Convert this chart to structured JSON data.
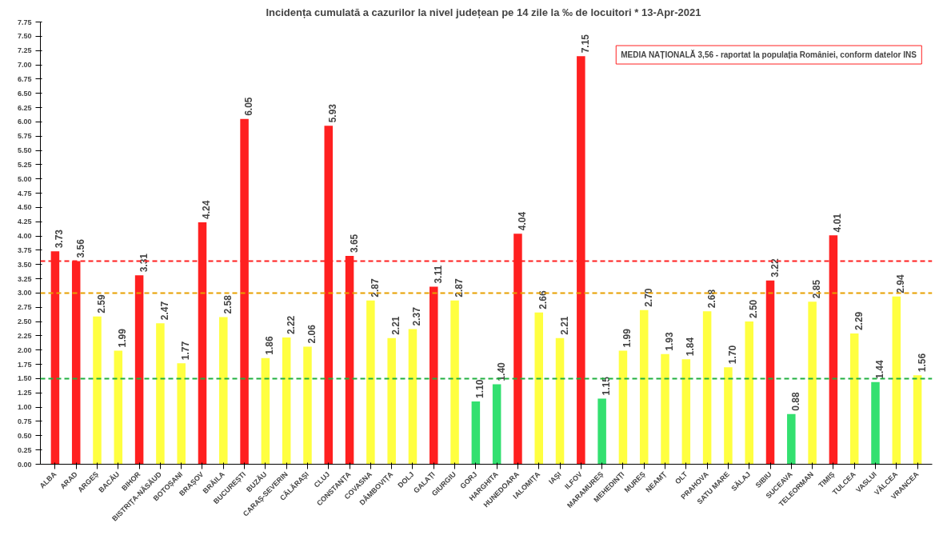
{
  "chart_data": {
    "type": "bar",
    "title": "Incidența cumulată a cazurilor la nivel județean pe 14 zile la ‰ de locuitori *   13-Apr-2021",
    "categories": [
      "ALBA",
      "ARAD",
      "ARGEȘ",
      "BACĂU",
      "BIHOR",
      "BISTRIȚA-NĂSĂUD",
      "BOTOȘANI",
      "BRAȘOV",
      "BRĂILA",
      "BUCUREȘTI",
      "BUZĂU",
      "CARAȘ-SEVERIN",
      "CĂLĂRAȘI",
      "CLUJ",
      "CONSTANȚA",
      "COVASNA",
      "DÂMBOVIȚA",
      "DOLJ",
      "GALAȚI",
      "GIURGIU",
      "GORJ",
      "HARGHITA",
      "HUNEDOARA",
      "IALOMIȚA",
      "IAȘI",
      "ILFOV",
      "MARAMUREȘ",
      "MEHEDINȚI",
      "MUREȘ",
      "NEAMȚ",
      "OLT",
      "PRAHOVA",
      "SATU MARE",
      "SĂLAJ",
      "SIBIU",
      "SUCEAVA",
      "TELEORMAN",
      "TIMIȘ",
      "TULCEA",
      "VASLUI",
      "VÂLCEA",
      "VRANCEA"
    ],
    "values": [
      3.73,
      3.56,
      2.59,
      1.99,
      3.31,
      2.47,
      1.77,
      4.24,
      2.58,
      6.05,
      1.86,
      2.22,
      2.06,
      5.93,
      3.65,
      2.87,
      2.21,
      2.37,
      3.11,
      2.87,
      1.1,
      1.4,
      4.04,
      2.66,
      2.21,
      7.15,
      1.15,
      1.99,
      2.7,
      1.93,
      1.84,
      2.68,
      1.7,
      2.5,
      3.22,
      0.88,
      2.85,
      4.01,
      2.29,
      1.44,
      2.94,
      1.56
    ],
    "value_labels": [
      "3.73",
      "3.56",
      "2.59",
      "1.99",
      "3.31",
      "2.47",
      "1.77",
      "4.24",
      "2.58",
      "6.05",
      "1.86",
      "2.22",
      "2.06",
      "5.93",
      "3.65",
      "2.87",
      "2.21",
      "2.37",
      "3.11",
      "2.87",
      "1.10",
      "1.40",
      "4.04",
      "2.66",
      "2.21",
      "7.15",
      "1.15",
      "1.99",
      "2.70",
      "1.93",
      "1.84",
      "2.68",
      "1.70",
      "2.50",
      "3.22",
      "0.88",
      "2.85",
      "4.01",
      "2.29",
      "1.44",
      "2.94",
      "1.56"
    ],
    "colors": [
      "#ff2020",
      "#ff2020",
      "#ffff40",
      "#ffff40",
      "#ff2020",
      "#ffff40",
      "#ffff40",
      "#ff2020",
      "#ffff40",
      "#ff2020",
      "#ffff40",
      "#ffff40",
      "#ffff40",
      "#ff2020",
      "#ff2020",
      "#ffff40",
      "#ffff40",
      "#ffff40",
      "#ff2020",
      "#ffff40",
      "#33e070",
      "#33e070",
      "#ff2020",
      "#ffff40",
      "#ffff40",
      "#ff2020",
      "#33e070",
      "#ffff40",
      "#ffff40",
      "#ffff40",
      "#ffff40",
      "#ffff40",
      "#ffff40",
      "#ffff40",
      "#ff2020",
      "#33e070",
      "#ffff40",
      "#ff2020",
      "#ffff40",
      "#33e070",
      "#ffff40",
      "#ffff40"
    ],
    "ylim": [
      0,
      7.75
    ],
    "yticks": [
      {
        "value": 0,
        "label": "0.00"
      },
      {
        "value": 0.25,
        "label": "0.25"
      },
      {
        "value": 0.5,
        "label": "0.50"
      },
      {
        "value": 0.75,
        "label": "0.75"
      },
      {
        "value": 1,
        "label": "1.00"
      },
      {
        "value": 1.25,
        "label": "1.25"
      },
      {
        "value": 1.5,
        "label": "1.50"
      },
      {
        "value": 1.75,
        "label": "1.75"
      },
      {
        "value": 2,
        "label": "2.00"
      },
      {
        "value": 2.25,
        "label": "2.25"
      },
      {
        "value": 2.5,
        "label": "2.50"
      },
      {
        "value": 2.75,
        "label": "2.75"
      },
      {
        "value": 3,
        "label": "3.00"
      },
      {
        "value": 3.25,
        "label": "3.25"
      },
      {
        "value": 3.5,
        "label": "3.50"
      },
      {
        "value": 3.75,
        "label": "3.75"
      },
      {
        "value": 4,
        "label": "4.00"
      },
      {
        "value": 4.25,
        "label": "4.25"
      },
      {
        "value": 4.5,
        "label": "4.50"
      },
      {
        "value": 4.75,
        "label": "4.75"
      },
      {
        "value": 5,
        "label": "5.00"
      },
      {
        "value": 5.25,
        "label": "5.25"
      },
      {
        "value": 5.5,
        "label": "5.50"
      },
      {
        "value": 5.75,
        "label": "5.75"
      },
      {
        "value": 6,
        "label": "6.00"
      },
      {
        "value": 6.25,
        "label": "6.25"
      },
      {
        "value": 6.5,
        "label": "6.50"
      },
      {
        "value": 6.75,
        "label": "6.75"
      },
      {
        "value": 7,
        "label": "7.00"
      },
      {
        "value": 7.25,
        "label": "7.25"
      },
      {
        "value": 7.5,
        "label": "7.50"
      },
      {
        "value": 7.75,
        "label": "7.75"
      }
    ],
    "ref_lines": [
      {
        "axis": "y",
        "value": 3.56,
        "color": "#ff2020",
        "line_style": "dashed"
      },
      {
        "axis": "y",
        "value": 3.0,
        "color": "#e8a000",
        "line_style": "dashed"
      },
      {
        "axis": "y",
        "value": 1.5,
        "color": "#20b040",
        "line_style": "dashed"
      }
    ],
    "annotations": [
      "MEDIA NAȚIONALĂ 3,56 - raportat la populația României, conform datelor INS"
    ],
    "grid": false
  }
}
